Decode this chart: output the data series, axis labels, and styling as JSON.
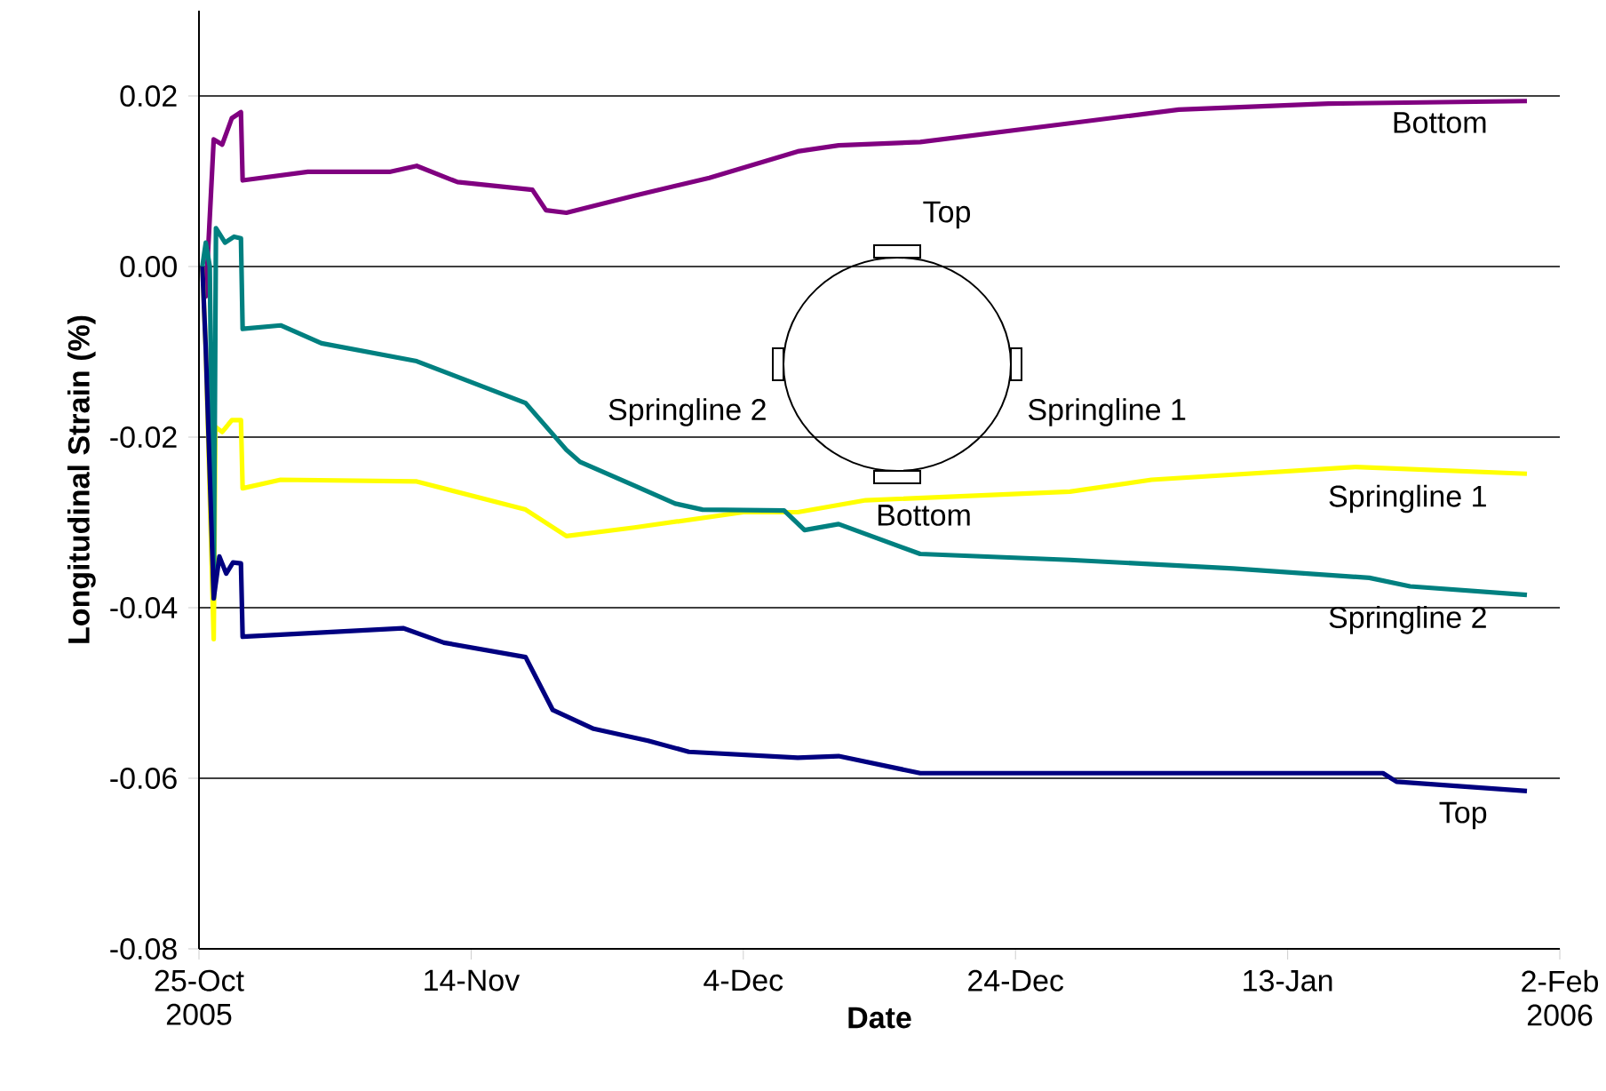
{
  "chart_data": {
    "type": "line",
    "xlabel": "Date",
    "ylabel": "Longitudinal Strain (%)",
    "xlim": [
      "2005-10-25",
      "2006-02-02"
    ],
    "ylim": [
      -0.08,
      0.03
    ],
    "xticks": [
      {
        "value": "2005-10-25",
        "label": "25-Oct 2005"
      },
      {
        "value": "2005-11-14",
        "label": "14-Nov"
      },
      {
        "value": "2005-12-04",
        "label": "4-Dec"
      },
      {
        "value": "2005-12-24",
        "label": "24-Dec"
      },
      {
        "value": "2006-01-13",
        "label": "13-Jan"
      },
      {
        "value": "2006-02-02",
        "label": "2-Feb 2006"
      }
    ],
    "yticks": [
      -0.08,
      -0.06,
      -0.04,
      -0.02,
      {
        "value": 0,
        "label": "0.00"
      },
      0.02
    ],
    "grid": "y",
    "annotations": [
      "Top",
      "Springline 1",
      "Bottom",
      "Springline 2"
    ],
    "series": [
      {
        "name": "Bottom",
        "color": "#800080",
        "x": [
          "2005-10-25T06:00",
          "2005-10-25T12:00",
          "2005-10-26T02:00",
          "2005-10-26T17:00",
          "2005-10-27T10:00",
          "2005-10-28T02:00",
          "2005-10-28T05:00",
          "2005-11-02",
          "2005-11-08",
          "2005-11-10",
          "2005-11-13",
          "2005-11-18T12:00",
          "2005-11-19T12:00",
          "2005-11-21",
          "2005-11-26",
          "2005-12-01T12:00",
          "2005-12-08",
          "2005-12-11",
          "2005-12-17",
          "2005-12-28",
          "2006-01-05",
          "2006-01-16",
          "2006-01-30T14:00"
        ],
        "values": [
          0,
          -0.0035,
          0.0149,
          0.0143,
          0.0174,
          0.0181,
          0.0101,
          0.0111,
          0.0111,
          0.0118,
          0.0099,
          0.009,
          0.0066,
          0.0063,
          0.0083,
          0.0104,
          0.0135,
          0.0142,
          0.0146,
          0.0168,
          0.0184,
          0.0191,
          0.0194
        ]
      },
      {
        "name": "Springline 1",
        "color": "#ffff00",
        "x": [
          "2005-10-25T06:00",
          "2005-10-25T12:00",
          "2005-10-26T02:00",
          "2005-10-26T05:00",
          "2005-10-26T17:00",
          "2005-10-27T10:00",
          "2005-10-28T02:00",
          "2005-10-28T05:00",
          "2005-10-31",
          "2005-11-10",
          "2005-11-18",
          "2005-11-21",
          "2005-11-26",
          "2005-12-04",
          "2005-12-08",
          "2005-12-13",
          "2005-12-28",
          "2006-01-03",
          "2006-01-18",
          "2006-01-30T14:00"
        ],
        "values": [
          0,
          -0.0097,
          -0.0437,
          -0.0188,
          -0.0194,
          -0.018,
          -0.018,
          -0.026,
          -0.025,
          -0.0252,
          -0.0285,
          -0.0316,
          -0.0306,
          -0.0288,
          -0.0288,
          -0.0274,
          -0.0264,
          -0.025,
          -0.0235,
          -0.0243
        ]
      },
      {
        "name": "Springline 2",
        "color": "#008080",
        "x": [
          "2005-10-25T06:00",
          "2005-10-25T12:00",
          "2005-10-25T19:00",
          "2005-10-26T02:00",
          "2005-10-26T06:00",
          "2005-10-26T22:00",
          "2005-10-27T14:00",
          "2005-10-28T02:00",
          "2005-10-28T05:00",
          "2005-10-31",
          "2005-11-03",
          "2005-11-10",
          "2005-11-18",
          "2005-11-21",
          "2005-11-22",
          "2005-11-26",
          "2005-11-29",
          "2005-12-01",
          "2005-12-07",
          "2005-12-08T12:00",
          "2005-12-11",
          "2005-12-17",
          "2005-12-28",
          "2006-01-09",
          "2006-01-19",
          "2006-01-22",
          "2006-01-30T14:00"
        ],
        "values": [
          0,
          0.0028,
          0,
          -0.0389,
          0.0045,
          0.0028,
          0.0035,
          0.0033,
          -0.0073,
          -0.0069,
          -0.009,
          -0.0111,
          -0.016,
          -0.0215,
          -0.0229,
          -0.0257,
          -0.0278,
          -0.0285,
          -0.0286,
          -0.0309,
          -0.0302,
          -0.0337,
          -0.0344,
          -0.0354,
          -0.0365,
          -0.0375,
          -0.0385
        ]
      },
      {
        "name": "Top",
        "color": "#000080",
        "x": [
          "2005-10-25T06:00",
          "2005-10-25T12:00",
          "2005-10-26T02:00",
          "2005-10-26T12:00",
          "2005-10-27T00:00",
          "2005-10-27T12:00",
          "2005-10-28T02:00",
          "2005-10-28T05:00",
          "2005-11-09",
          "2005-11-12",
          "2005-11-18",
          "2005-11-20",
          "2005-11-23",
          "2005-11-27",
          "2005-11-30",
          "2005-12-08",
          "2005-12-11",
          "2005-12-17",
          "2005-12-28",
          "2006-01-20",
          "2006-01-21",
          "2006-01-30T14:00"
        ],
        "values": [
          0,
          -0.0097,
          -0.0389,
          -0.034,
          -0.036,
          -0.0347,
          -0.0348,
          -0.0434,
          -0.0424,
          -0.0441,
          -0.0458,
          -0.052,
          -0.0542,
          -0.0556,
          -0.0569,
          -0.0576,
          -0.0574,
          -0.0594,
          -0.0594,
          -0.0594,
          -0.0604,
          -0.0615
        ]
      }
    ]
  }
}
